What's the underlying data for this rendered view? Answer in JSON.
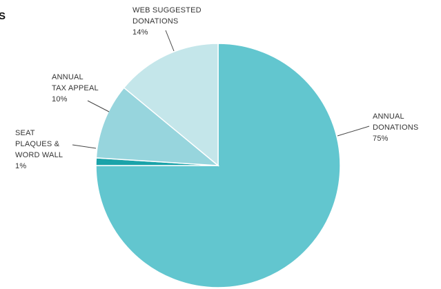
{
  "title_fragment": "S",
  "chart_data": {
    "type": "pie",
    "slices": [
      {
        "label_lines": [
          "ANNUAL",
          "DONATIONS"
        ],
        "percent_label": "75%",
        "value": 75,
        "color": "#62c6cf"
      },
      {
        "label_lines": [
          "SEAT",
          "PLAQUES &",
          "WORD WALL"
        ],
        "percent_label": "1%",
        "value": 1,
        "color": "#1aa3a9"
      },
      {
        "label_lines": [
          "ANNUAL",
          "TAX APPEAL"
        ],
        "percent_label": "10%",
        "value": 10,
        "color": "#97d5dd"
      },
      {
        "label_lines": [
          "WEB SUGGESTED",
          "DONATIONS"
        ],
        "percent_label": "14%",
        "value": 14,
        "color": "#c4e6ea"
      }
    ],
    "start_angle_deg": 90,
    "direction": "clockwise"
  }
}
